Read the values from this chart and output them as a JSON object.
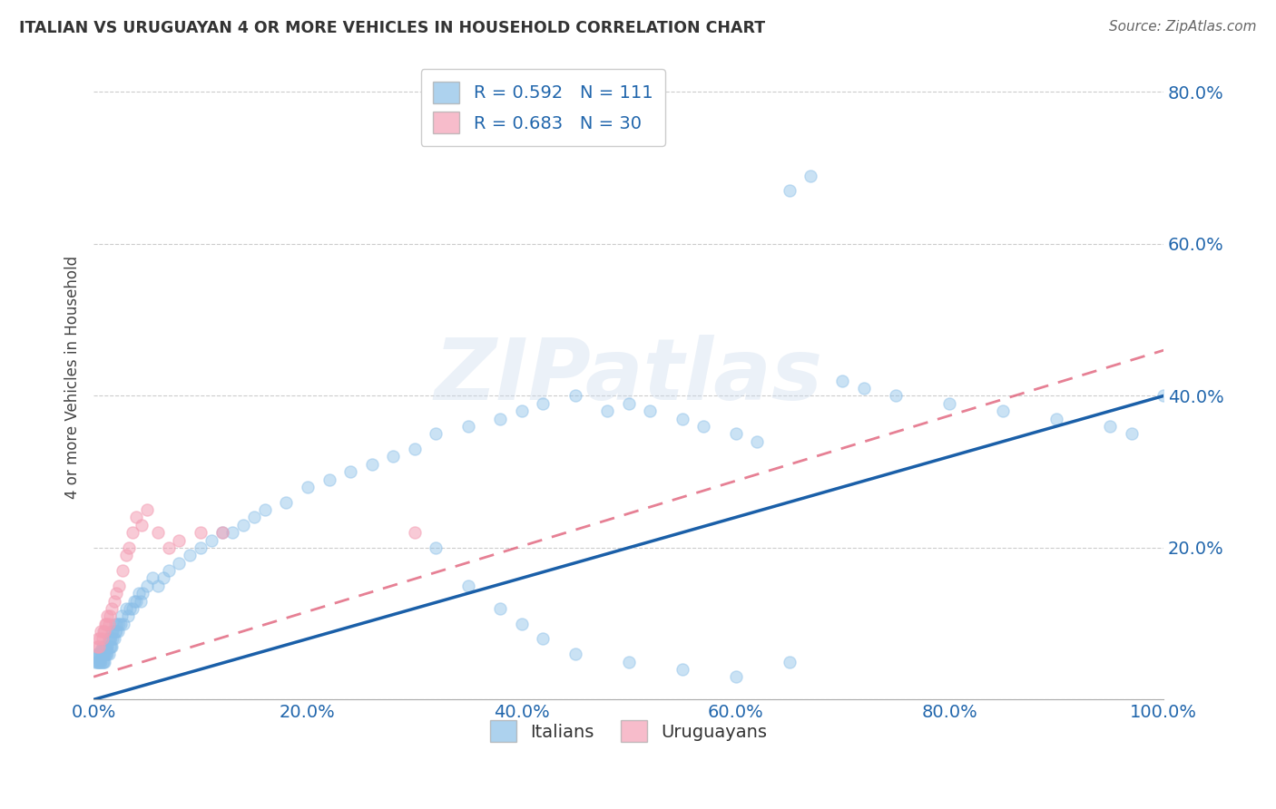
{
  "title": "ITALIAN VS URUGUAYAN 4 OR MORE VEHICLES IN HOUSEHOLD CORRELATION CHART",
  "source": "Source: ZipAtlas.com",
  "ylabel": "4 or more Vehicles in Household",
  "xlim": [
    0.0,
    1.0
  ],
  "ylim": [
    0.0,
    0.85
  ],
  "ytick_positions": [
    0.0,
    0.2,
    0.4,
    0.6,
    0.8
  ],
  "ytick_labels": [
    "",
    "20.0%",
    "40.0%",
    "60.0%",
    "80.0%"
  ],
  "xtick_positions": [
    0.0,
    0.2,
    0.4,
    0.6,
    0.8,
    1.0
  ],
  "xtick_labels": [
    "0.0%",
    "20.0%",
    "40.0%",
    "60.0%",
    "80.0%",
    "100.0%"
  ],
  "italian_color": "#8bbfe8",
  "uruguayan_color": "#f4a0b5",
  "italian_line_color": "#1a5fa8",
  "uruguayan_line_color": "#e0607a",
  "italian_R": 0.592,
  "italian_N": 111,
  "uruguayan_R": 0.683,
  "uruguayan_N": 30,
  "background_color": "#ffffff",
  "watermark": "ZIPatlas",
  "it_line_x0": 0.0,
  "it_line_y0": 0.0,
  "it_line_x1": 1.0,
  "it_line_y1": 0.4,
  "uy_line_x0": 0.0,
  "uy_line_y0": 0.03,
  "uy_line_x1": 1.0,
  "uy_line_y1": 0.46,
  "it_x": [
    0.002,
    0.003,
    0.003,
    0.004,
    0.004,
    0.005,
    0.005,
    0.006,
    0.006,
    0.007,
    0.007,
    0.007,
    0.008,
    0.008,
    0.008,
    0.009,
    0.009,
    0.009,
    0.01,
    0.01,
    0.01,
    0.011,
    0.011,
    0.012,
    0.012,
    0.013,
    0.013,
    0.014,
    0.014,
    0.015,
    0.015,
    0.016,
    0.016,
    0.017,
    0.017,
    0.018,
    0.018,
    0.019,
    0.02,
    0.02,
    0.021,
    0.022,
    0.023,
    0.024,
    0.025,
    0.026,
    0.028,
    0.03,
    0.032,
    0.034,
    0.036,
    0.038,
    0.04,
    0.042,
    0.044,
    0.046,
    0.05,
    0.055,
    0.06,
    0.065,
    0.07,
    0.08,
    0.09,
    0.1,
    0.11,
    0.12,
    0.13,
    0.14,
    0.15,
    0.16,
    0.18,
    0.2,
    0.22,
    0.24,
    0.26,
    0.28,
    0.3,
    0.32,
    0.35,
    0.38,
    0.4,
    0.42,
    0.45,
    0.48,
    0.5,
    0.52,
    0.55,
    0.57,
    0.6,
    0.62,
    0.65,
    0.67,
    0.7,
    0.72,
    0.75,
    0.8,
    0.85,
    0.9,
    0.95,
    0.97,
    1.0,
    0.32,
    0.35,
    0.38,
    0.4,
    0.42,
    0.45,
    0.5,
    0.55,
    0.6,
    0.65
  ],
  "it_y": [
    0.05,
    0.05,
    0.06,
    0.05,
    0.06,
    0.05,
    0.06,
    0.05,
    0.06,
    0.05,
    0.055,
    0.065,
    0.05,
    0.06,
    0.07,
    0.05,
    0.06,
    0.07,
    0.05,
    0.06,
    0.07,
    0.06,
    0.07,
    0.06,
    0.07,
    0.06,
    0.07,
    0.06,
    0.08,
    0.07,
    0.08,
    0.07,
    0.08,
    0.07,
    0.09,
    0.08,
    0.09,
    0.08,
    0.09,
    0.1,
    0.09,
    0.1,
    0.09,
    0.1,
    0.1,
    0.11,
    0.1,
    0.12,
    0.11,
    0.12,
    0.12,
    0.13,
    0.13,
    0.14,
    0.13,
    0.14,
    0.15,
    0.16,
    0.15,
    0.16,
    0.17,
    0.18,
    0.19,
    0.2,
    0.21,
    0.22,
    0.22,
    0.23,
    0.24,
    0.25,
    0.26,
    0.28,
    0.29,
    0.3,
    0.31,
    0.32,
    0.33,
    0.35,
    0.36,
    0.37,
    0.38,
    0.39,
    0.4,
    0.38,
    0.39,
    0.38,
    0.37,
    0.36,
    0.35,
    0.34,
    0.67,
    0.69,
    0.42,
    0.41,
    0.4,
    0.39,
    0.38,
    0.37,
    0.36,
    0.35,
    0.4,
    0.2,
    0.15,
    0.12,
    0.1,
    0.08,
    0.06,
    0.05,
    0.04,
    0.03,
    0.05
  ],
  "uy_x": [
    0.003,
    0.004,
    0.005,
    0.006,
    0.007,
    0.008,
    0.009,
    0.01,
    0.011,
    0.012,
    0.013,
    0.014,
    0.015,
    0.017,
    0.019,
    0.021,
    0.024,
    0.027,
    0.03,
    0.033,
    0.036,
    0.04,
    0.045,
    0.05,
    0.06,
    0.07,
    0.08,
    0.1,
    0.12,
    0.3
  ],
  "uy_y": [
    0.07,
    0.08,
    0.07,
    0.08,
    0.09,
    0.08,
    0.09,
    0.09,
    0.1,
    0.1,
    0.11,
    0.1,
    0.11,
    0.12,
    0.13,
    0.14,
    0.15,
    0.17,
    0.19,
    0.2,
    0.22,
    0.24,
    0.23,
    0.25,
    0.22,
    0.2,
    0.21,
    0.22,
    0.22,
    0.22
  ]
}
